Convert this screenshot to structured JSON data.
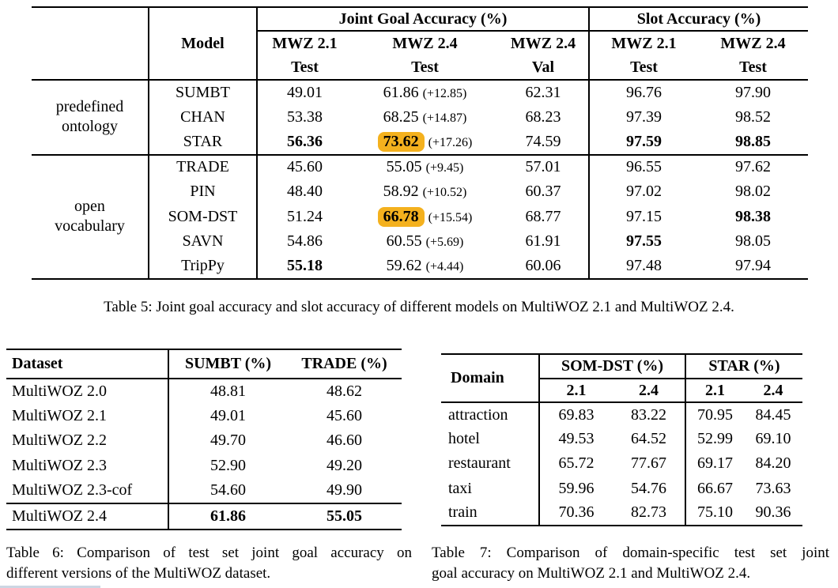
{
  "page": {
    "background": "#ffffff",
    "text_color": "#000000",
    "rule_color": "#000000",
    "highlight_color": "#f4b11e",
    "bottom_bar_color": "#ccd6e3"
  },
  "table5": {
    "caption": "Table 5: Joint goal accuracy and slot accuracy of different models on MultiWOZ 2.1 and MultiWOZ 2.4.",
    "header": {
      "model_label": "Model",
      "group_jga": "Joint Goal Accuracy (%)",
      "group_slot": "Slot Accuracy (%)",
      "subcolumns": [
        {
          "dataset": "MWZ 2.1",
          "split": "Test"
        },
        {
          "dataset": "MWZ 2.4",
          "split": "Test"
        },
        {
          "dataset": "MWZ 2.4",
          "split": "Val"
        },
        {
          "dataset": "MWZ 2.1",
          "split": "Test"
        },
        {
          "dataset": "MWZ 2.4",
          "split": "Test"
        }
      ]
    },
    "row_groups": [
      {
        "label_lines": [
          "predefined",
          "ontology"
        ],
        "rows": [
          {
            "model": "SUMBT",
            "cells": [
              {
                "v": "49.01"
              },
              {
                "v": "61.86",
                "suffix": "(+12.85)"
              },
              {
                "v": "62.31"
              },
              {
                "v": "96.76"
              },
              {
                "v": "97.90"
              }
            ]
          },
          {
            "model": "CHAN",
            "cells": [
              {
                "v": "53.38"
              },
              {
                "v": "68.25",
                "suffix": "(+14.87)"
              },
              {
                "v": "68.23"
              },
              {
                "v": "97.39"
              },
              {
                "v": "98.52"
              }
            ]
          },
          {
            "model": "STAR",
            "cells": [
              {
                "v": "56.36",
                "bold": true
              },
              {
                "v": "73.62",
                "suffix": "(+17.26)",
                "bold": true,
                "highlight": true
              },
              {
                "v": "74.59"
              },
              {
                "v": "97.59",
                "bold": true
              },
              {
                "v": "98.85",
                "bold": true
              }
            ]
          }
        ]
      },
      {
        "label_lines": [
          "open",
          "vocabulary"
        ],
        "rows": [
          {
            "model": "TRADE",
            "cells": [
              {
                "v": "45.60"
              },
              {
                "v": "55.05",
                "suffix": "(+9.45)"
              },
              {
                "v": "57.01"
              },
              {
                "v": "96.55"
              },
              {
                "v": "97.62"
              }
            ]
          },
          {
            "model": "PIN",
            "cells": [
              {
                "v": "48.40"
              },
              {
                "v": "58.92",
                "suffix": "(+10.52)"
              },
              {
                "v": "60.37"
              },
              {
                "v": "97.02"
              },
              {
                "v": "98.02"
              }
            ]
          },
          {
            "model": "SOM-DST",
            "cells": [
              {
                "v": "51.24"
              },
              {
                "v": "66.78",
                "suffix": "(+15.54)",
                "bold": true,
                "highlight": true
              },
              {
                "v": "68.77"
              },
              {
                "v": "97.15"
              },
              {
                "v": "98.38",
                "bold": true
              }
            ]
          },
          {
            "model": "SAVN",
            "cells": [
              {
                "v": "54.86"
              },
              {
                "v": "60.55",
                "suffix": "(+5.69)"
              },
              {
                "v": "61.91"
              },
              {
                "v": "97.55",
                "bold": true
              },
              {
                "v": "98.05"
              }
            ]
          },
          {
            "model": "TripPy",
            "cells": [
              {
                "v": "55.18",
                "bold": true
              },
              {
                "v": "59.62",
                "suffix": "(+4.44)"
              },
              {
                "v": "60.06"
              },
              {
                "v": "97.48"
              },
              {
                "v": "97.94"
              }
            ]
          }
        ]
      }
    ]
  },
  "table6": {
    "columns": [
      "Dataset",
      "SUMBT (%)",
      "TRADE (%)"
    ],
    "rows": [
      {
        "dataset": "MultiWOZ 2.0",
        "sumbt": "48.81",
        "trade": "48.62",
        "bold_values": false,
        "separated": false
      },
      {
        "dataset": "MultiWOZ 2.1",
        "sumbt": "49.01",
        "trade": "45.60",
        "bold_values": false,
        "separated": false
      },
      {
        "dataset": "MultiWOZ 2.2",
        "sumbt": "49.70",
        "trade": "46.60",
        "bold_values": false,
        "separated": false
      },
      {
        "dataset": "MultiWOZ 2.3",
        "sumbt": "52.90",
        "trade": "49.20",
        "bold_values": false,
        "separated": false
      },
      {
        "dataset": "MultiWOZ 2.3-cof",
        "sumbt": "54.60",
        "trade": "49.90",
        "bold_values": false,
        "separated": false
      },
      {
        "dataset": "MultiWOZ 2.4",
        "sumbt": "61.86",
        "trade": "55.05",
        "bold_values": true,
        "separated": true
      }
    ],
    "caption_lines": [
      "Table 6: Comparison of test set joint goal accuracy on",
      "different versions of the MultiWOZ dataset."
    ]
  },
  "table7": {
    "domain_label": "Domain",
    "groups": [
      {
        "label": "SOM-DST (%)",
        "subcolumns": [
          "2.1",
          "2.4"
        ]
      },
      {
        "label": "STAR (%)",
        "subcolumns": [
          "2.1",
          "2.4"
        ]
      }
    ],
    "rows": [
      {
        "domain": "attraction",
        "values": [
          "69.83",
          "83.22",
          "70.95",
          "84.45"
        ]
      },
      {
        "domain": "hotel",
        "values": [
          "49.53",
          "64.52",
          "52.99",
          "69.10"
        ]
      },
      {
        "domain": "restaurant",
        "values": [
          "65.72",
          "77.67",
          "69.17",
          "84.20"
        ]
      },
      {
        "domain": "taxi",
        "values": [
          "59.96",
          "54.76",
          "66.67",
          "73.63"
        ]
      },
      {
        "domain": "train",
        "values": [
          "70.36",
          "82.73",
          "75.10",
          "90.36"
        ]
      }
    ],
    "caption_lines": [
      "Table 7: Comparison of domain-specific test set joint",
      "goal accuracy on MultiWOZ 2.1 and MultiWOZ 2.4."
    ]
  }
}
